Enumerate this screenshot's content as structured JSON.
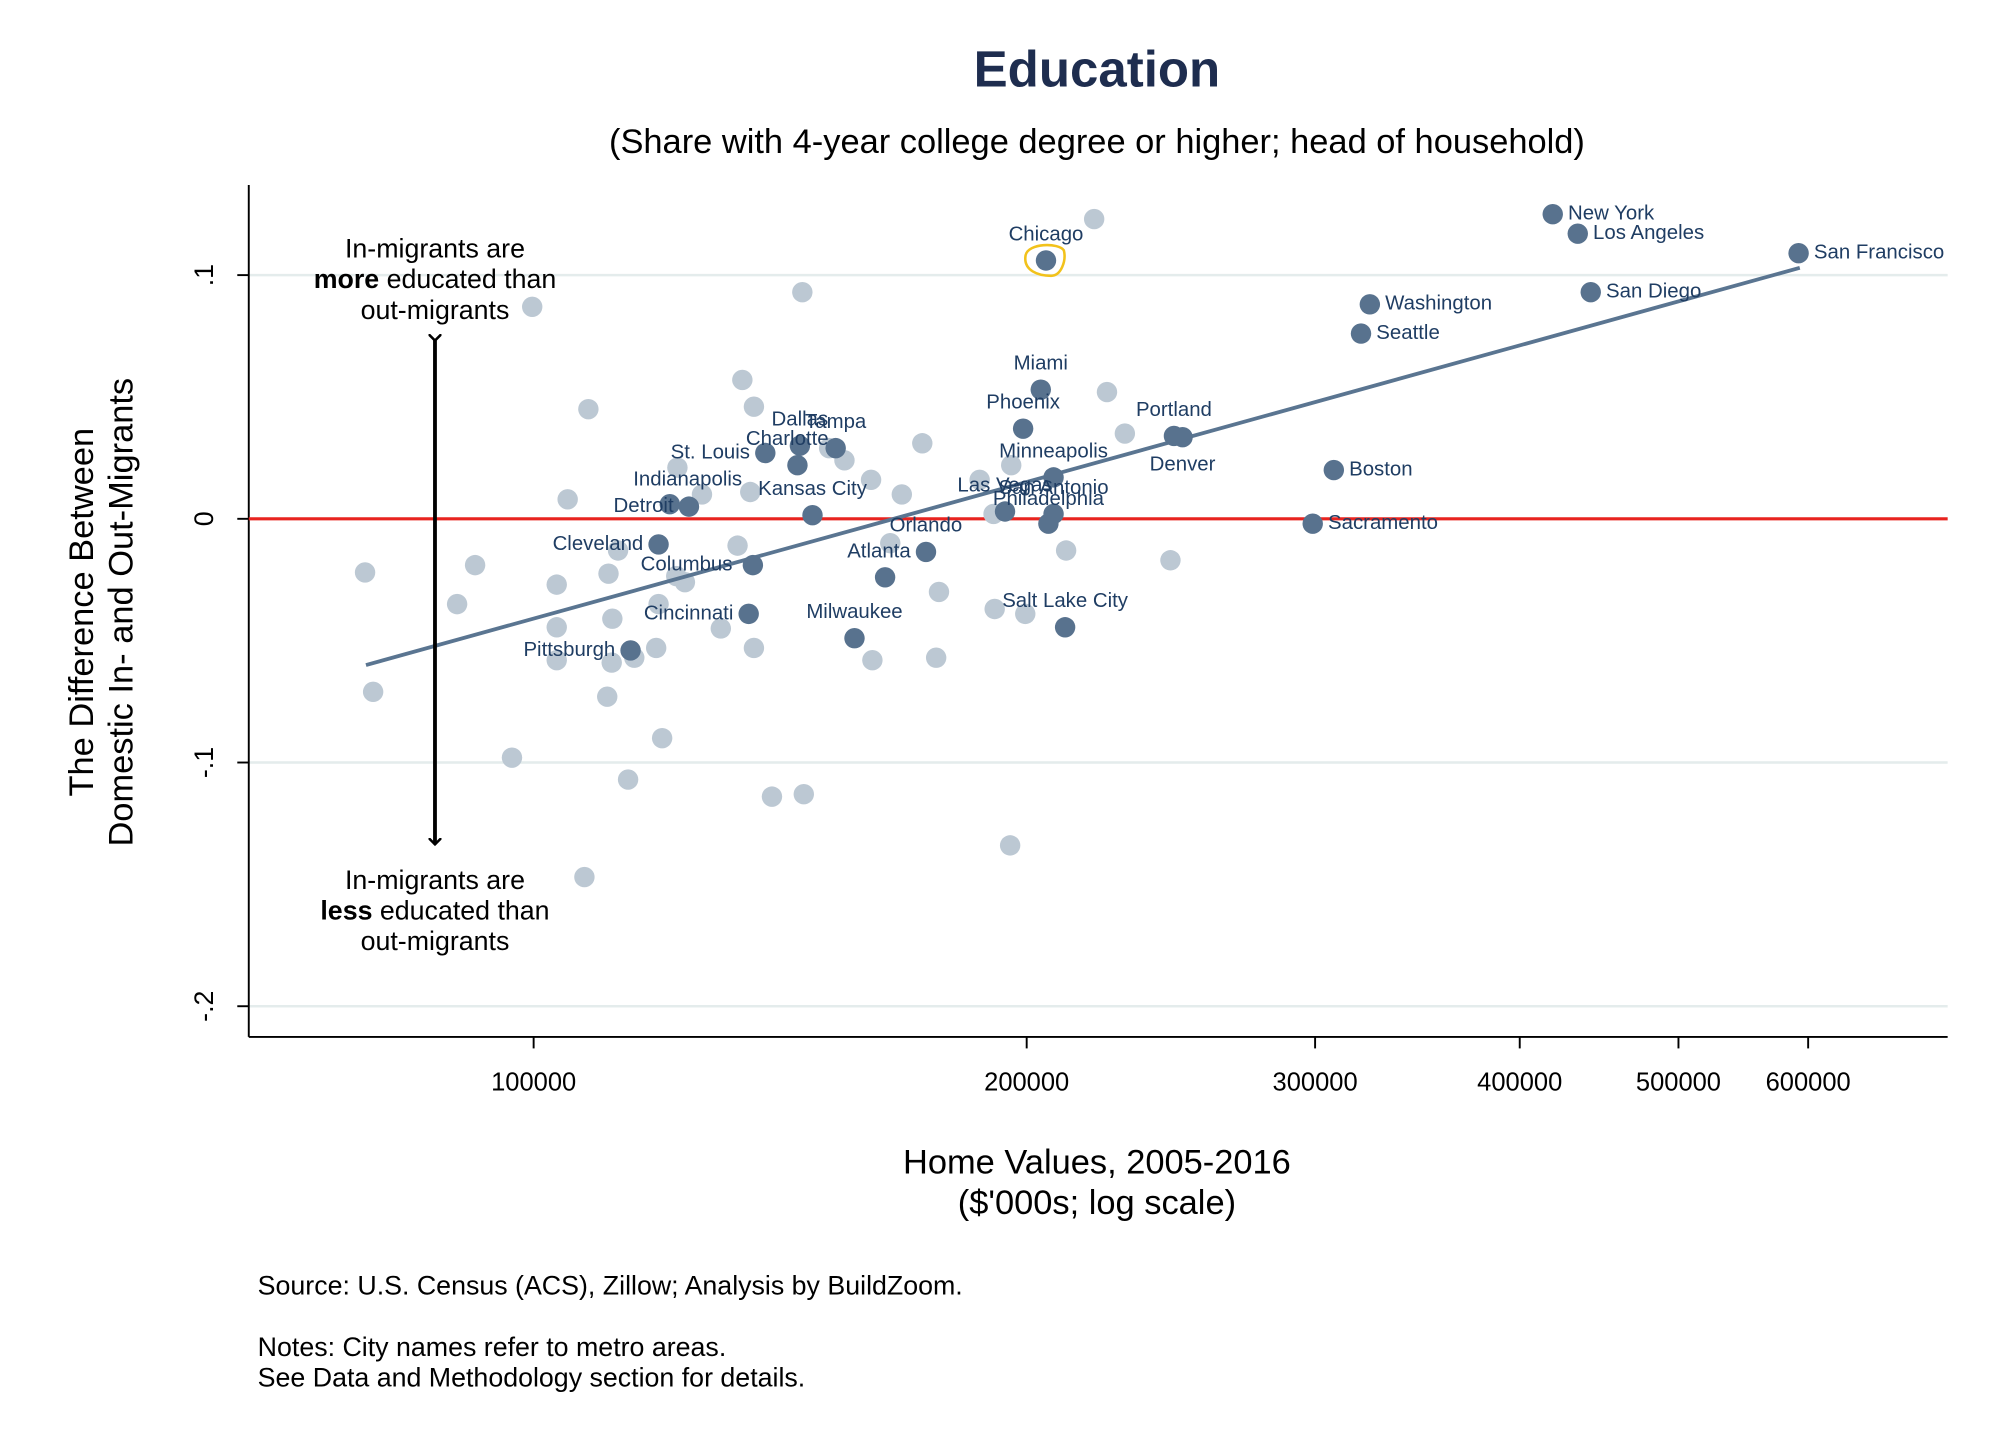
{
  "chart_data": {
    "type": "scatter",
    "title": "Education",
    "subtitle": "(Share with 4-year college degree or higher; head of household)",
    "x_label": [
      "Home Values, 2005-2016",
      "($'000s; log scale)"
    ],
    "y_label": [
      "The Difference Between",
      "Domestic In- and Out-Migrants"
    ],
    "source": "Source: U.S. Census (ACS), Zillow; Analysis by BuildZoom.",
    "notes": [
      "Notes: City names refer to metro areas.",
      "See Data and Methodology section for details."
    ],
    "annotation_top": [
      "In-migrants are",
      "more",
      " educated than",
      "out-migrants"
    ],
    "annotation_bottom": [
      "In-migrants are",
      "less",
      " educated than",
      "out-migrants"
    ],
    "x_log_scale": true,
    "grid": true,
    "xlim": [
      67000,
      730000
    ],
    "ylim": [
      -0.2126,
      0.137
    ],
    "xticks": [
      100000,
      200000,
      300000,
      400000,
      500000,
      600000
    ],
    "yticks": [
      {
        "value": 0.1,
        "label": ".1"
      },
      0,
      {
        "value": -0.1,
        "label": "-.1"
      },
      {
        "value": -0.2,
        "label": "-.2"
      }
    ],
    "reference_line": {
      "y": 0,
      "color": "#e8231f"
    },
    "fit_line": {
      "color": "#5a7591",
      "x": [
        79000,
        593000
      ],
      "y": [
        -0.06,
        0.103
      ]
    },
    "highlight": {
      "label": "Chicago",
      "color": "#f2c21b"
    },
    "series": [
      {
        "color": "#58728e",
        "labels": [
          "Chicago",
          "New York",
          "Los Angeles",
          "San Francisco",
          "Washington",
          "San Diego",
          "Seattle",
          "Miami",
          "Phoenix",
          "Portland",
          "Denver",
          "Boston",
          "Sacramento",
          "Dallas",
          "Tampa",
          "Charlotte",
          "St. Louis",
          "Indianapolis",
          "Detroit",
          "Kansas City",
          "Minneapolis",
          "Las Vegas",
          "San Antonio",
          "Philadelphia",
          "Orlando",
          "Atlanta",
          "Cleveland",
          "Columbus",
          "Cincinnati",
          "Pittsburgh",
          "Milwaukee",
          "Salt Lake City"
        ],
        "x": [
          205500,
          419000,
          434000,
          592000,
          324000,
          442000,
          320000,
          204000,
          199000,
          246000,
          249000,
          308000,
          299000,
          145400,
          152900,
          144900,
          138500,
          121100,
          124400,
          148000,
          207700,
          194000,
          207700,
          206200,
          163900,
          173600,
          119200,
          136100,
          135300,
          114600,
          157000,
          211100
        ],
        "y": [
          0.106,
          0.125,
          0.117,
          0.109,
          0.088,
          0.093,
          0.076,
          0.053,
          0.037,
          0.034,
          0.0335,
          0.02,
          -0.002,
          0.03,
          0.029,
          0.022,
          0.027,
          0.006,
          0.005,
          0.0015,
          0.017,
          0.003,
          0.002,
          -0.002,
          -0.024,
          -0.0136,
          -0.0105,
          -0.019,
          -0.039,
          -0.054,
          -0.049,
          -0.0445
        ]
      },
      {
        "color": "#bcc8d3",
        "x": [
          219900,
          99800,
          145900,
          134100,
          136300,
          108000,
          223900,
          229600,
          172700,
          151500,
          154800,
          122400,
          126700,
          104900,
          135600,
          160700,
          167800,
          187200,
          195700,
          190900,
          78900,
          92100,
          89800,
          103300,
          111100,
          112600,
          123700,
          133200,
          122200,
          119200,
          111700,
          103300,
          130100,
          118800,
          115200,
          111600,
          103300,
          136300,
          165100,
          176800,
          191200,
          199600,
          211400,
          244800,
          161000,
          176100,
          79800,
          110900,
          119800,
          97000,
          114200,
          139800,
          146200,
          195400,
          107400
        ],
        "y": [
          0.123,
          0.087,
          0.093,
          0.057,
          0.046,
          0.045,
          0.052,
          0.035,
          0.031,
          0.029,
          0.024,
          0.021,
          0.01,
          0.008,
          0.011,
          0.016,
          0.01,
          0.016,
          0.022,
          0.002,
          -0.022,
          -0.019,
          -0.035,
          -0.027,
          -0.0225,
          -0.013,
          -0.026,
          -0.011,
          -0.0235,
          -0.035,
          -0.041,
          -0.0445,
          -0.045,
          -0.053,
          -0.057,
          -0.059,
          -0.058,
          -0.053,
          -0.01,
          -0.03,
          -0.037,
          -0.039,
          -0.013,
          -0.017,
          -0.058,
          -0.057,
          -0.071,
          -0.073,
          -0.09,
          -0.098,
          -0.107,
          -0.114,
          -0.113,
          -0.134,
          -0.147
        ]
      }
    ]
  }
}
